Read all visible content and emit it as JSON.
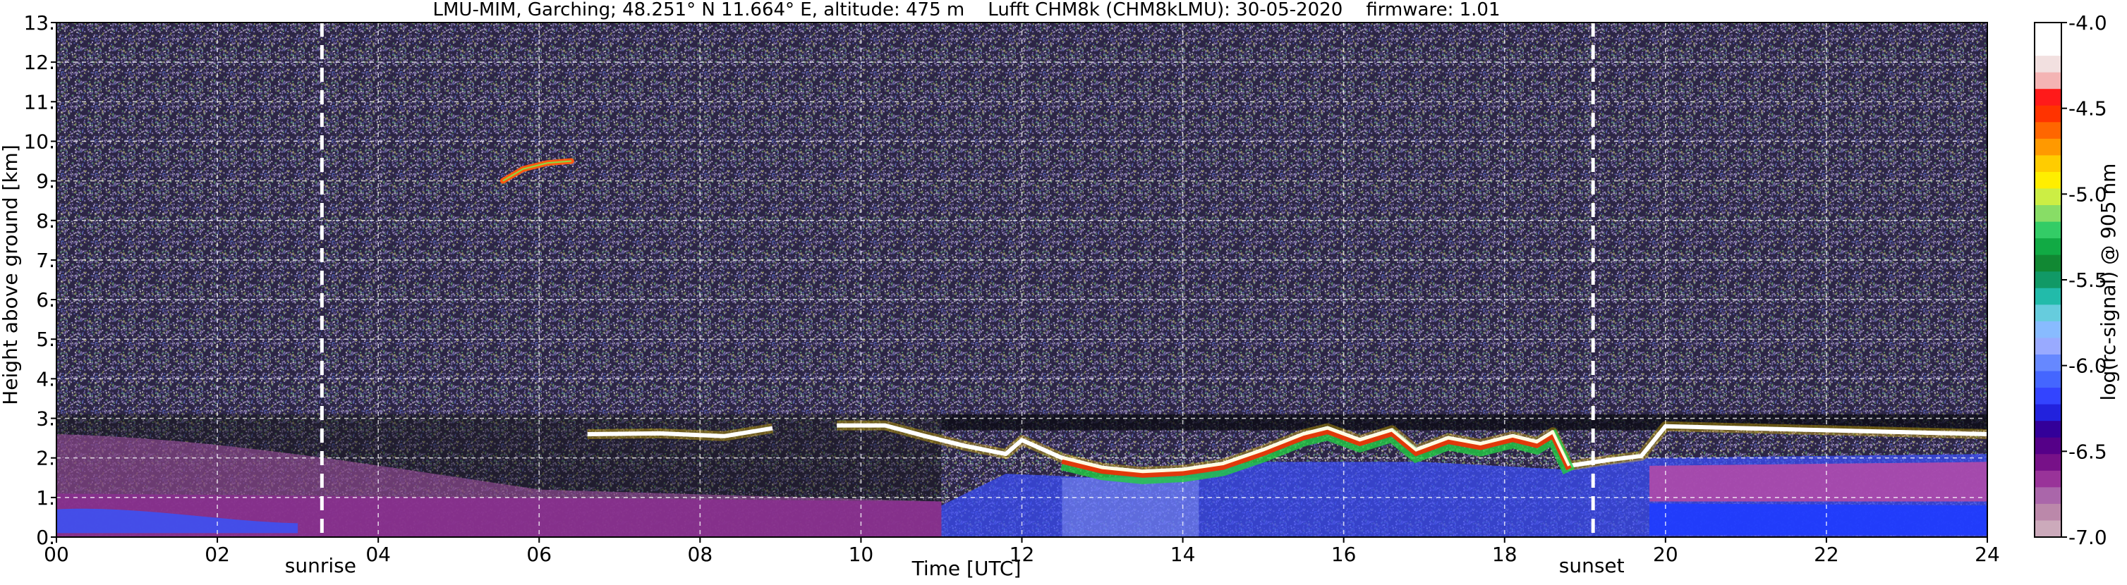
{
  "chart_data": {
    "type": "heatmap",
    "title": "LMU-MIM, Garching; 48.251° N 11.664° E, altitude: 475 m    Lufft CHM8k (CHM8kLMU): 30-05-2020    firmware: 1.01",
    "xlabel": "Time [UTC]",
    "ylabel": "Height above ground [km]",
    "xlim": [
      0,
      24
    ],
    "ylim": [
      0,
      13
    ],
    "x_ticks": [
      {
        "value": 0,
        "label": "00"
      },
      {
        "value": 2,
        "label": "02"
      },
      {
        "value": 4,
        "label": "04"
      },
      {
        "value": 6,
        "label": "06"
      },
      {
        "value": 8,
        "label": "08"
      },
      {
        "value": 10,
        "label": "10"
      },
      {
        "value": 12,
        "label": "12"
      },
      {
        "value": 14,
        "label": "14"
      },
      {
        "value": 16,
        "label": "16"
      },
      {
        "value": 18,
        "label": "18"
      },
      {
        "value": 20,
        "label": "20"
      },
      {
        "value": 22,
        "label": "22"
      },
      {
        "value": 24,
        "label": "24"
      }
    ],
    "y_ticks": [
      {
        "value": 0,
        "label": "0."
      },
      {
        "value": 1,
        "label": "1."
      },
      {
        "value": 2,
        "label": "2."
      },
      {
        "value": 3,
        "label": "3."
      },
      {
        "value": 4,
        "label": "4."
      },
      {
        "value": 5,
        "label": "5."
      },
      {
        "value": 6,
        "label": "6."
      },
      {
        "value": 7,
        "label": "7."
      },
      {
        "value": 8,
        "label": "8."
      },
      {
        "value": 9,
        "label": "9."
      },
      {
        "value": 10,
        "label": "10."
      },
      {
        "value": 11,
        "label": "11."
      },
      {
        "value": 12,
        "label": "12."
      },
      {
        "value": 13,
        "label": "13."
      }
    ],
    "grid": true,
    "markers": [
      {
        "label": "sunrise",
        "x": 3.3
      },
      {
        "label": "sunset",
        "x": 19.1
      }
    ],
    "colorbar": {
      "label": "log(rc-signal) @ 905 nm",
      "range": [
        -7.0,
        -4.0
      ],
      "ticks": [
        {
          "value": -4.0,
          "label": "-4.0"
        },
        {
          "value": -4.5,
          "label": "-4.5"
        },
        {
          "value": -5.0,
          "label": "-5.0"
        },
        {
          "value": -5.5,
          "label": "-5.5"
        },
        {
          "value": -6.0,
          "label": "-6.0"
        },
        {
          "value": -6.5,
          "label": "-6.5"
        },
        {
          "value": -7.0,
          "label": "-7.0"
        }
      ],
      "colors_top_to_bottom": [
        "#ffffff",
        "#ffffff",
        "#f2e0e0",
        "#f4b4b4",
        "#ff1a1a",
        "#ff3300",
        "#ff6600",
        "#ff9900",
        "#ffcc00",
        "#ffee00",
        "#ccee44",
        "#88dd66",
        "#33cc66",
        "#11aa44",
        "#118833",
        "#119966",
        "#22bbaa",
        "#66ccdd",
        "#88bbff",
        "#99aaff",
        "#6688ff",
        "#4466ff",
        "#3344ff",
        "#2222dd",
        "#330099",
        "#550088",
        "#771188",
        "#993399",
        "#aa66aa",
        "#bb88aa",
        "#ccaabb"
      ]
    },
    "features": {
      "cloud_layer": [
        {
          "t": 6.6,
          "h": 2.6
        },
        {
          "t": 7.5,
          "h": 2.62
        },
        {
          "t": 8.3,
          "h": 2.55
        },
        {
          "t": 8.9,
          "h": 2.75
        },
        {
          "t": 9.7,
          "h": 2.82
        },
        {
          "t": 10.3,
          "h": 2.82
        },
        {
          "t": 10.8,
          "h": 2.55
        },
        {
          "t": 11.3,
          "h": 2.3
        },
        {
          "t": 11.8,
          "h": 2.1
        },
        {
          "t": 12.0,
          "h": 2.45
        },
        {
          "t": 12.5,
          "h": 2.0
        },
        {
          "t": 13.0,
          "h": 1.75
        },
        {
          "t": 13.5,
          "h": 1.65
        },
        {
          "t": 14.0,
          "h": 1.7
        },
        {
          "t": 14.5,
          "h": 1.85
        },
        {
          "t": 15.0,
          "h": 2.2
        },
        {
          "t": 15.5,
          "h": 2.6
        },
        {
          "t": 15.8,
          "h": 2.75
        },
        {
          "t": 16.2,
          "h": 2.45
        },
        {
          "t": 16.6,
          "h": 2.7
        },
        {
          "t": 16.9,
          "h": 2.2
        },
        {
          "t": 17.3,
          "h": 2.5
        },
        {
          "t": 17.7,
          "h": 2.35
        },
        {
          "t": 18.1,
          "h": 2.55
        },
        {
          "t": 18.4,
          "h": 2.4
        },
        {
          "t": 18.6,
          "h": 2.65
        },
        {
          "t": 18.8,
          "h": 1.8
        },
        {
          "t": 19.3,
          "h": 1.95
        },
        {
          "t": 19.7,
          "h": 2.05
        },
        {
          "t": 20.0,
          "h": 2.8
        },
        {
          "t": 21.0,
          "h": 2.75
        },
        {
          "t": 22.0,
          "h": 2.7
        },
        {
          "t": 23.0,
          "h": 2.65
        },
        {
          "t": 24.0,
          "h": 2.6
        }
      ],
      "upper_cloud": [
        {
          "t": 5.55,
          "h": 9.0
        },
        {
          "t": 5.8,
          "h": 9.3
        },
        {
          "t": 6.1,
          "h": 9.45
        },
        {
          "t": 6.4,
          "h": 9.5
        }
      ]
    }
  }
}
